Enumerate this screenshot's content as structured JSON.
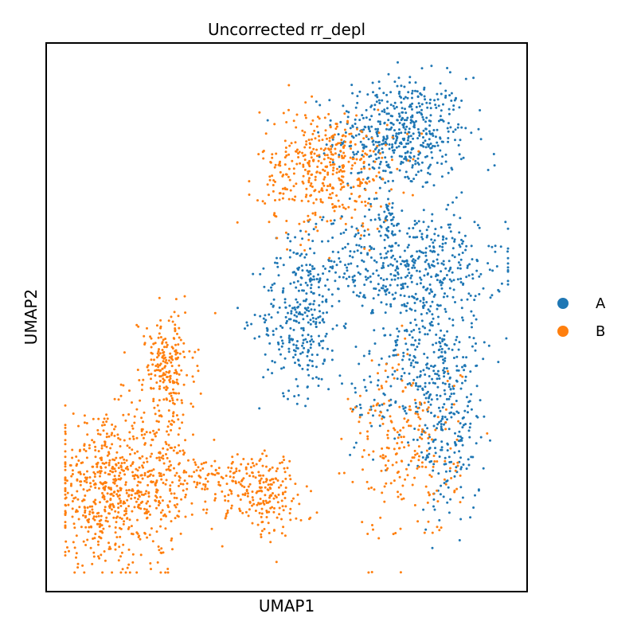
{
  "chart_data": {
    "type": "scatter",
    "title": "Uncorrected rr_depl",
    "xlabel": "UMAP1",
    "ylabel": "UMAP2",
    "xlim": [
      0,
      10
    ],
    "ylim": [
      0,
      10
    ],
    "ticks": "none",
    "grid": false,
    "legend": {
      "placement": "right",
      "entries": [
        "A",
        "B"
      ]
    },
    "colors": {
      "A": "#1f77b4",
      "B": "#ff7f0e"
    },
    "marker": "dot",
    "point_distribution": "clusters",
    "series": [
      {
        "name": "A",
        "color": "#1f77b4",
        "clusters": [
          {
            "cx": 7.6,
            "cy": 8.6,
            "sx": 0.75,
            "sy": 0.55,
            "n": 520
          },
          {
            "cx": 7.9,
            "cy": 6.0,
            "sx": 1.0,
            "sy": 0.55,
            "n": 420
          },
          {
            "cx": 5.3,
            "cy": 5.0,
            "sx": 0.45,
            "sy": 0.75,
            "n": 300
          },
          {
            "cx": 8.2,
            "cy": 4.2,
            "sx": 0.55,
            "sy": 0.9,
            "n": 300
          },
          {
            "cx": 8.7,
            "cy": 2.6,
            "sx": 0.35,
            "sy": 0.8,
            "n": 160
          },
          {
            "cx": 7.3,
            "cy": 7.0,
            "sx": 0.1,
            "sy": 0.35,
            "n": 40
          },
          {
            "cx": 6.4,
            "cy": 6.1,
            "sx": 0.6,
            "sy": 0.5,
            "n": 70
          },
          {
            "cx": 6.9,
            "cy": 3.5,
            "sx": 0.35,
            "sy": 0.55,
            "n": 40
          }
        ]
      },
      {
        "name": "B",
        "color": "#ff7f0e",
        "clusters": [
          {
            "cx": 5.9,
            "cy": 7.9,
            "sx": 0.75,
            "sy": 0.6,
            "n": 430
          },
          {
            "cx": 2.3,
            "cy": 4.1,
            "sx": 0.3,
            "sy": 0.45,
            "n": 170
          },
          {
            "cx": 1.0,
            "cy": 1.6,
            "sx": 0.7,
            "sy": 0.7,
            "n": 600
          },
          {
            "cx": 2.2,
            "cy": 2.3,
            "sx": 0.3,
            "sy": 1.1,
            "n": 180
          },
          {
            "cx": 3.6,
            "cy": 1.8,
            "sx": 0.8,
            "sy": 0.3,
            "n": 170
          },
          {
            "cx": 4.5,
            "cy": 1.5,
            "sx": 0.4,
            "sy": 0.4,
            "n": 140
          },
          {
            "cx": 7.7,
            "cy": 2.4,
            "sx": 0.6,
            "sy": 0.9,
            "n": 230
          }
        ]
      }
    ]
  }
}
